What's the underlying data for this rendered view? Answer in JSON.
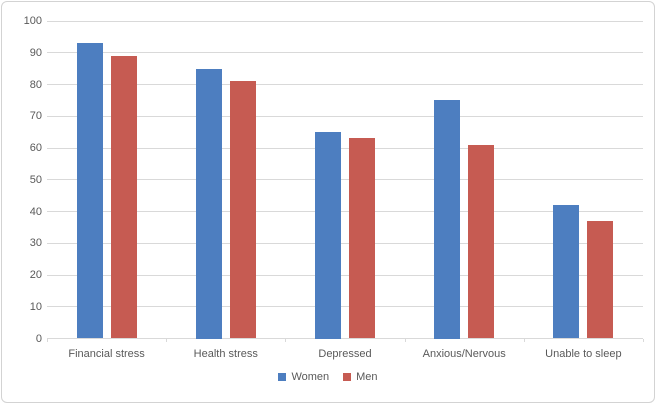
{
  "chart_data": {
    "type": "bar",
    "title": "",
    "xlabel": "",
    "ylabel": "",
    "categories": [
      "Financial stress",
      "Health stress",
      "Depressed",
      "Anxious/Nervous",
      "Unable to sleep"
    ],
    "series": [
      {
        "name": "Women",
        "color": "#4D7EC0",
        "values": [
          93,
          85,
          65,
          75,
          42
        ]
      },
      {
        "name": "Men",
        "color": "#C65B52",
        "values": [
          89,
          81,
          63,
          61,
          37
        ]
      }
    ],
    "ylim": [
      0,
      100
    ],
    "yticks": [
      0,
      10,
      20,
      30,
      40,
      50,
      60,
      70,
      80,
      90,
      100
    ],
    "grid": true,
    "legend_position": "bottom"
  },
  "colors": {
    "grid": "#D9D9D9",
    "axis_text": "#595959",
    "border": "#D3D3D3",
    "background": "#FFFFFF"
  }
}
